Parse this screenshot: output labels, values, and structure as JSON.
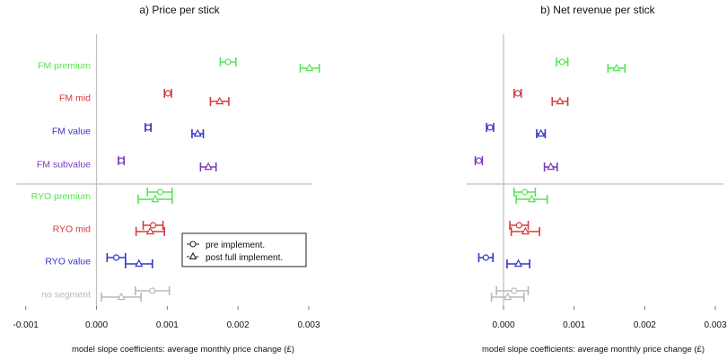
{
  "chart_data": [
    {
      "type": "scatter",
      "title": "a)   Price per stick",
      "xlabel": "model slope coefficients: average monthly price change (£)",
      "xlim": [
        -0.001,
        0.003
      ],
      "xticks": [
        "-0.001",
        "0.000",
        "0.001",
        "0.002",
        "0.003"
      ],
      "xtick_values": [
        -0.001,
        0,
        0.001,
        0.002,
        0.003
      ],
      "grid": false,
      "legend": {
        "placement": "bottom-right",
        "entries": [
          {
            "marker": "circle",
            "label": "pre implement."
          },
          {
            "marker": "triangle",
            "label": "post full implement."
          }
        ]
      },
      "categories": [
        {
          "label": "FM premium",
          "color": "#55e455",
          "pre": {
            "est": 0.00186,
            "lo": 0.00175,
            "hi": 0.00197
          },
          "post": {
            "est": 0.00301,
            "lo": 0.00288,
            "hi": 0.00315
          }
        },
        {
          "label": "FM mid",
          "color": "#d83a3a",
          "pre": {
            "est": 0.00101,
            "lo": 0.00096,
            "hi": 0.00106
          },
          "post": {
            "est": 0.00174,
            "lo": 0.00161,
            "hi": 0.00187
          }
        },
        {
          "label": "FM value",
          "color": "#3535c8",
          "pre": {
            "est": 0.00073,
            "lo": 0.00069,
            "hi": 0.00077
          },
          "post": {
            "est": 0.00143,
            "lo": 0.00135,
            "hi": 0.00151
          }
        },
        {
          "label": "FM subvalue",
          "color": "#7b3ab8",
          "pre": {
            "est": 0.00035,
            "lo": 0.00031,
            "hi": 0.00039
          },
          "post": {
            "est": 0.00158,
            "lo": 0.00147,
            "hi": 0.00169
          }
        },
        {
          "label": "RYO premium",
          "color": "#55e455",
          "pre": {
            "est": 0.0009,
            "lo": 0.00072,
            "hi": 0.00107
          },
          "post": {
            "est": 0.00083,
            "lo": 0.00059,
            "hi": 0.00107
          }
        },
        {
          "label": "RYO mid",
          "color": "#d83a3a",
          "pre": {
            "est": 0.0008,
            "lo": 0.00066,
            "hi": 0.00094
          },
          "post": {
            "est": 0.00076,
            "lo": 0.00056,
            "hi": 0.00096
          }
        },
        {
          "label": "RYO value",
          "color": "#3535c8",
          "pre": {
            "est": 0.00028,
            "lo": 0.00015,
            "hi": 0.00041
          },
          "post": {
            "est": 0.0006,
            "lo": 0.00041,
            "hi": 0.00079
          }
        },
        {
          "label": "no segment",
          "color": "#b8b8b8",
          "pre": {
            "est": 0.00079,
            "lo": 0.00055,
            "hi": 0.00103
          },
          "post": {
            "est": 0.00035,
            "lo": 7e-05,
            "hi": 0.00063
          }
        }
      ]
    },
    {
      "type": "scatter",
      "title": "b)   Net revenue per stick",
      "xlabel": "model slope coefficients: average monthly price change (£)",
      "xlim": [
        -0.00055,
        0.003
      ],
      "xticks": [
        "0.000",
        "0.001",
        "0.002",
        "0.003"
      ],
      "xtick_values": [
        0,
        0.001,
        0.002,
        0.003
      ],
      "grid": false,
      "categories": [
        {
          "label": "FM premium",
          "color": "#55e455",
          "pre": {
            "est": 0.00083,
            "lo": 0.00075,
            "hi": 0.00091
          },
          "post": {
            "est": 0.0016,
            "lo": 0.00148,
            "hi": 0.00172
          }
        },
        {
          "label": "FM mid",
          "color": "#d83a3a",
          "pre": {
            "est": 0.0002,
            "lo": 0.00015,
            "hi": 0.00025
          },
          "post": {
            "est": 0.0008,
            "lo": 0.00069,
            "hi": 0.00091
          }
        },
        {
          "label": "FM value",
          "color": "#3535c8",
          "pre": {
            "est": -0.00019,
            "lo": -0.00024,
            "hi": -0.00014
          },
          "post": {
            "est": 0.00053,
            "lo": 0.00047,
            "hi": 0.00059
          }
        },
        {
          "label": "FM subvalue",
          "color": "#7b3ab8",
          "pre": {
            "est": -0.00035,
            "lo": -0.0004,
            "hi": -0.0003
          },
          "post": {
            "est": 0.00067,
            "lo": 0.00058,
            "hi": 0.00076
          }
        },
        {
          "label": "RYO premium",
          "color": "#55e455",
          "pre": {
            "est": 0.0003,
            "lo": 0.00015,
            "hi": 0.00045
          },
          "post": {
            "est": 0.0004,
            "lo": 0.00018,
            "hi": 0.00062
          }
        },
        {
          "label": "RYO mid",
          "color": "#d83a3a",
          "pre": {
            "est": 0.00022,
            "lo": 9e-05,
            "hi": 0.00035
          },
          "post": {
            "est": 0.00031,
            "lo": 0.00011,
            "hi": 0.00051
          }
        },
        {
          "label": "RYO value",
          "color": "#3535c8",
          "pre": {
            "est": -0.00025,
            "lo": -0.00035,
            "hi": -0.00015
          },
          "post": {
            "est": 0.00021,
            "lo": 5e-05,
            "hi": 0.00037
          }
        },
        {
          "label": "no segment",
          "color": "#b8b8b8",
          "pre": {
            "est": 0.00015,
            "lo": -0.0001,
            "hi": 0.00035
          },
          "post": {
            "est": 6e-05,
            "lo": -0.00017,
            "hi": 0.00029
          }
        }
      ]
    }
  ]
}
